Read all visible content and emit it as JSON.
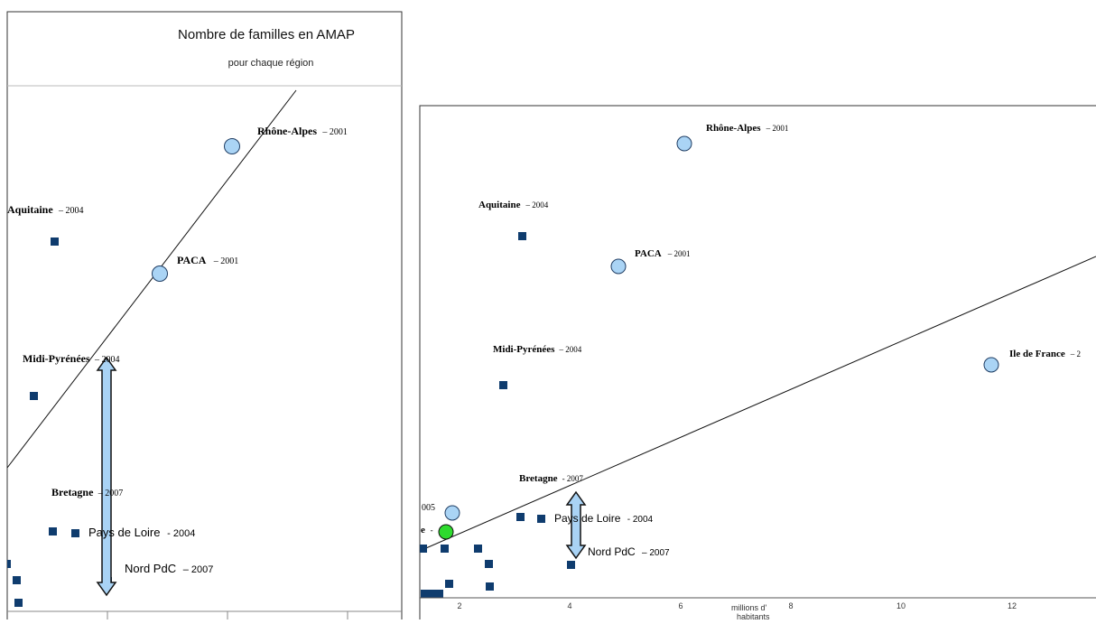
{
  "colors": {
    "point_large": "#aad4f5",
    "point_large_stroke": "#1f3d63",
    "point_small": "#0f3c6e",
    "point_green": "#2edb2e",
    "arrow_fill": "#a9d3f5",
    "axis": "#555555"
  },
  "left_panel": {
    "title": "Nombre de familles en AMAP",
    "subtitle": "pour chaque région",
    "labels": [
      {
        "name": "Rhône-Alpes",
        "year": "– 2001"
      },
      {
        "name": "Aquitaine",
        "year": "– 2004"
      },
      {
        "name": "PACA",
        "year": "– 2001"
      },
      {
        "name": "Midi-Pyrénées",
        "year": "– 2004"
      },
      {
        "name": "Bretagne",
        "year": "– 2007"
      },
      {
        "name": "Pays de Loire",
        "year": "- 2004"
      },
      {
        "name": "Nord PdC",
        "year": "– 2007"
      }
    ]
  },
  "right_panel": {
    "labels": [
      {
        "name": "Rhône-Alpes",
        "year": "– 2001"
      },
      {
        "name": "Aquitaine",
        "year": "– 2004"
      },
      {
        "name": "PACA",
        "year": "– 2001"
      },
      {
        "name": "Midi-Pyrénées",
        "year": "– 2004"
      },
      {
        "name": "Ile de France",
        "year": "– 2"
      },
      {
        "name": "Bretagne",
        "year": "- 2007"
      },
      {
        "name": "Pays de Loire",
        "year": "- 2004"
      },
      {
        "name": "Nord PdC",
        "year": "– 2007"
      },
      {
        "name": "",
        "year": "005"
      },
      {
        "name": "e",
        "year": "-"
      }
    ],
    "xlabel": "millions d' habitants",
    "xticks": [
      "2",
      "4",
      "6",
      "8",
      "10",
      "12"
    ]
  },
  "chart_data": [
    {
      "type": "scatter",
      "title": "Nombre de familles en AMAP",
      "subtitle": "pour chaque région",
      "series": [
        {
          "name": "Rhône-Alpes",
          "marker": "circle"
        },
        {
          "name": "PACA",
          "marker": "circle"
        },
        {
          "name": "Aquitaine",
          "marker": "square"
        },
        {
          "name": "Midi-Pyrénées",
          "marker": "square"
        },
        {
          "name": "Bretagne",
          "marker": "square"
        },
        {
          "name": "Pays de Loire",
          "marker": "square"
        },
        {
          "name": "Nord PdC",
          "marker": "square"
        }
      ],
      "trendline": true,
      "annotation": "double arrow between Midi-Pyrénées and Nord PdC"
    },
    {
      "type": "scatter",
      "xlabel": "millions d' habitants",
      "x_ticks": [
        2,
        4,
        6,
        8,
        10,
        12
      ],
      "xlim": [
        1,
        13.8
      ],
      "points": [
        {
          "name": "Rhône-Alpes",
          "x": 6.1,
          "marker": "circle"
        },
        {
          "name": "Aquitaine",
          "x": 3.2,
          "marker": "square"
        },
        {
          "name": "PACA",
          "x": 4.9,
          "marker": "circle"
        },
        {
          "name": "Midi-Pyrénées",
          "x": 2.8,
          "marker": "square"
        },
        {
          "name": "Ile de France",
          "x": 11.6,
          "marker": "circle"
        },
        {
          "name": "Bretagne",
          "x": 3.1,
          "marker": "square"
        },
        {
          "name": "Pays de Loire",
          "x": 3.5,
          "marker": "square"
        },
        {
          "name": "Nord PdC",
          "x": 4.0,
          "marker": "square"
        }
      ],
      "trendline": true,
      "annotation": "double arrow between Bretagne and Nord PdC"
    }
  ]
}
